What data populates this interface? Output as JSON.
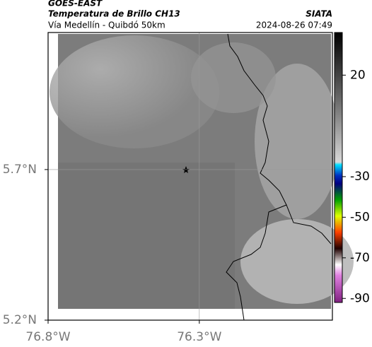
{
  "header": {
    "source": "GOES-EAST",
    "title": "Temperatura de Brillo CH13",
    "subtitle": "Vía Medellín - Quibdó 50km",
    "org": "SIATA",
    "timestamp": "2024-08-26 07:49"
  },
  "map": {
    "ylim": [
      5.2,
      6.155
    ],
    "xlim": [
      -76.8,
      -75.86
    ],
    "yticks": [
      {
        "value": 5.2,
        "label": "5.2°N"
      },
      {
        "value": 5.7,
        "label": "5.7°N"
      }
    ],
    "xticks": [
      {
        "value": -76.8,
        "label": "76.8°W"
      },
      {
        "value": -76.3,
        "label": "76.3°W"
      }
    ]
  },
  "colorbar": {
    "clim": [
      -92,
      41
    ],
    "ticks": [
      20,
      -30,
      -50,
      -70,
      -90
    ]
  }
}
